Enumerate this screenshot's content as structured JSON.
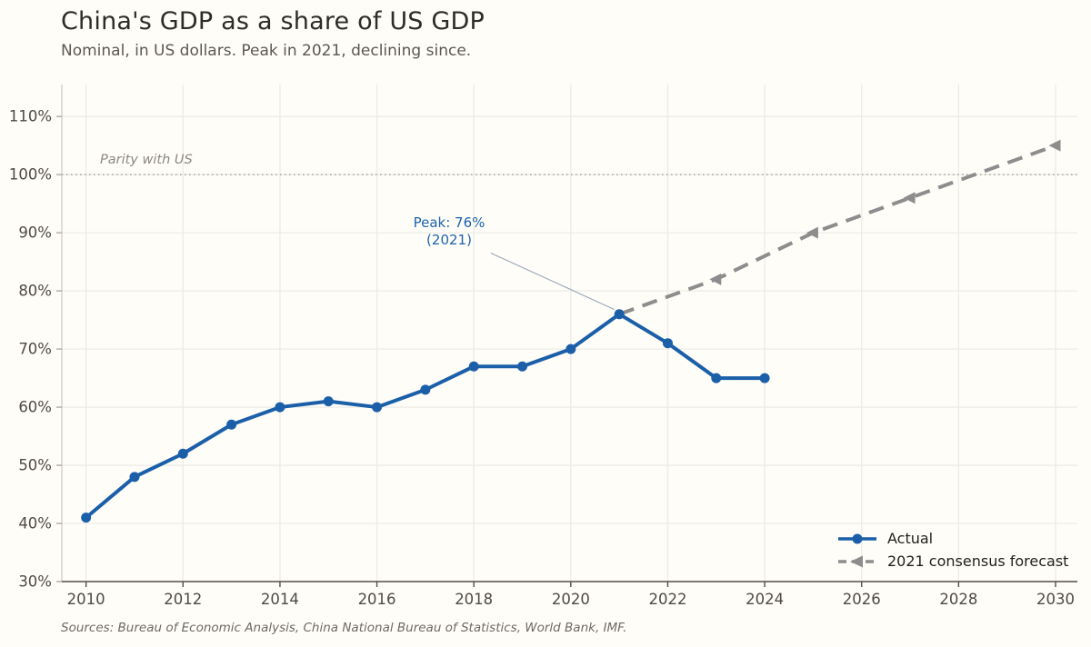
{
  "header": {
    "title": "China's GDP as a share of US GDP",
    "subtitle": "Nominal, in US dollars. Peak in 2021, declining since."
  },
  "footer": {
    "sources": "Sources: Bureau of Economic Analysis, China National Bureau of Statistics, World Bank, IMF."
  },
  "colors": {
    "background": "#fffdf8",
    "actual_blue": "#1b5fa9",
    "forecast_gray": "#8d8d8d",
    "annotation_blue": "#1c63ab",
    "leader_line": "#9aa8ba",
    "grid": "#edebe6",
    "parity_dotted": "#aaa69e",
    "bottom_spine": "#524f4a",
    "left_spine": "#cfccc6",
    "tick_label": "#4e4a45"
  },
  "chart_data": {
    "type": "line",
    "title": "China's GDP as a share of US GDP",
    "subtitle": "Nominal, in US dollars. Peak in 2021, declining since.",
    "xlabel": "",
    "ylabel": "",
    "xlim": [
      2009.5,
      2030.45
    ],
    "ylim": [
      30,
      115.5
    ],
    "x_ticks": [
      2010,
      2012,
      2014,
      2016,
      2018,
      2020,
      2022,
      2024,
      2026,
      2028,
      2030
    ],
    "y_ticks": [
      30,
      40,
      50,
      60,
      70,
      80,
      90,
      100,
      110
    ],
    "y_tick_suffix": "%",
    "grid": true,
    "legend_position": "lower right",
    "series": [
      {
        "name": "Actual",
        "color": "#1b5fa9",
        "style": "solid",
        "marker": "circle",
        "x": [
          2010,
          2011,
          2012,
          2013,
          2014,
          2015,
          2016,
          2017,
          2018,
          2019,
          2020,
          2021,
          2022,
          2023,
          2024
        ],
        "values": [
          41,
          48,
          52,
          57,
          60,
          61,
          60,
          63,
          67,
          67,
          70,
          76,
          71,
          65,
          65
        ]
      },
      {
        "name": "2021 consensus forecast",
        "color": "#8d8d8d",
        "style": "dashed",
        "marker": "triangle-left",
        "x": [
          2021,
          2023,
          2025,
          2027,
          2030
        ],
        "values": [
          76,
          82,
          90,
          96,
          105
        ],
        "marker_x": [
          2023,
          2025,
          2027,
          2030
        ]
      }
    ],
    "reference_line": {
      "y": 100,
      "label": "Parity with US",
      "style": "dotted"
    },
    "annotation": {
      "lines": [
        "Peak: 76%",
        "(2021)"
      ],
      "target_x": 2021,
      "target_y": 76,
      "leader": {
        "x1": 2018.35,
        "y1": 86.5,
        "x2": 2020.9,
        "y2": 76.8
      }
    }
  }
}
